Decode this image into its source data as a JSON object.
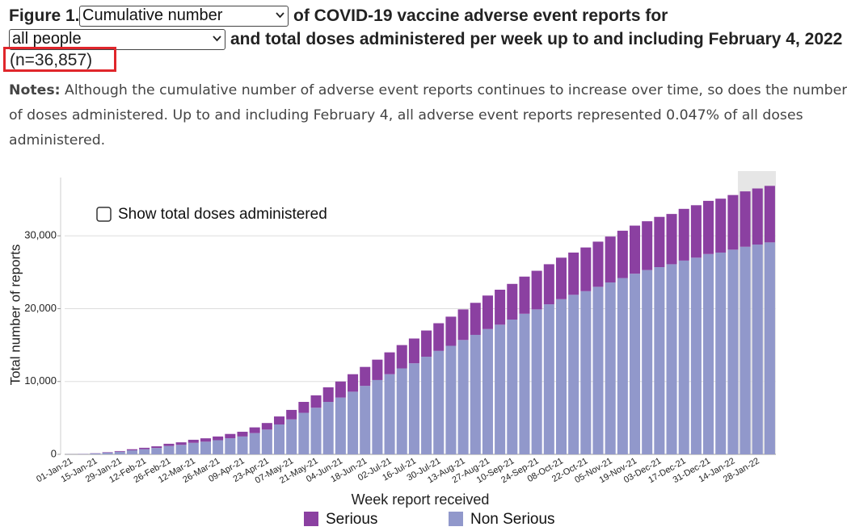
{
  "header": {
    "figure_label": "Figure 1.",
    "select_measure": "Cumulative number",
    "title_part1": "of COVID-19 vaccine adverse event reports for",
    "select_group": "all people",
    "title_part2": "and total doses administered per week up to and including February 4, 2022",
    "count": "(n=36,857)"
  },
  "notes": {
    "label": "Notes:",
    "text": "Although the cumulative number of adverse event reports continues to increase over time, so does the number of doses administered. Up to and including February 4, all adverse event reports represented 0.047% of all doses administered."
  },
  "controls": {
    "checkbox_label": "Show total doses administered"
  },
  "chart_data": {
    "type": "stacked-bar",
    "y_label": "Total number of reports",
    "x_label": "Week report received",
    "categories": [
      "01-Jan-21",
      null,
      "15-Jan-21",
      null,
      "29-Jan-21",
      null,
      "12-Feb-21",
      null,
      "26-Feb-21",
      null,
      "12-Mar-21",
      null,
      "26-Mar-21",
      null,
      "09-Apr-21",
      null,
      "23-Apr-21",
      null,
      "07-May-21",
      null,
      "21-May-21",
      null,
      "04-Jun-21",
      null,
      "18-Jun-21",
      null,
      "02-Jul-21",
      null,
      "16-Jul-21",
      null,
      "30-Jul-21",
      null,
      "13-Aug-21",
      null,
      "27-Aug-21",
      null,
      "10-Sep-21",
      null,
      "24-Sep-21",
      null,
      "08-Oct-21",
      null,
      "22-Oct-21",
      null,
      "05-Nov-21",
      null,
      "19-Nov-21",
      null,
      "03-Dec-21",
      null,
      "17-Dec-21",
      null,
      "31-Dec-21",
      null,
      "14-Jan-22",
      null,
      "28-Jan-22",
      null
    ],
    "series": [
      {
        "name": "Serious",
        "color": "#8b40a1",
        "values": [
          5,
          15,
          30,
          60,
          90,
          150,
          190,
          230,
          300,
          350,
          420,
          460,
          510,
          590,
          650,
          780,
          900,
          1100,
          1300,
          1500,
          1700,
          2000,
          2200,
          2400,
          2600,
          2800,
          3000,
          3200,
          3400,
          3600,
          3800,
          4000,
          4200,
          4400,
          4600,
          4800,
          4900,
          5100,
          5300,
          5500,
          5700,
          5800,
          6000,
          6200,
          6300,
          6500,
          6600,
          6700,
          6900,
          6900,
          7100,
          7200,
          7300,
          7400,
          7500,
          7600,
          7700,
          7757
        ]
      },
      {
        "name": "Non Serious",
        "color": "#9198cb",
        "values": [
          15,
          45,
          120,
          240,
          360,
          550,
          710,
          870,
          1150,
          1300,
          1580,
          1740,
          1940,
          2210,
          2450,
          2920,
          3400,
          4100,
          4800,
          5700,
          6400,
          7200,
          7800,
          8600,
          9400,
          10200,
          11000,
          11800,
          12500,
          13400,
          14200,
          14900,
          15700,
          16400,
          17200,
          17800,
          18500,
          19300,
          19900,
          20600,
          21300,
          21900,
          22400,
          23000,
          23600,
          24200,
          24800,
          25300,
          25700,
          26100,
          26600,
          27000,
          27500,
          27700,
          28100,
          28500,
          28800,
          29100
        ]
      }
    ],
    "ylim": [
      0,
      38000
    ],
    "yticks": [
      0,
      {
        "value": 10000,
        "label": "10,000"
      },
      {
        "value": 20000,
        "label": "20,000"
      },
      {
        "value": 30000,
        "label": "30,000"
      }
    ],
    "grid": true
  }
}
